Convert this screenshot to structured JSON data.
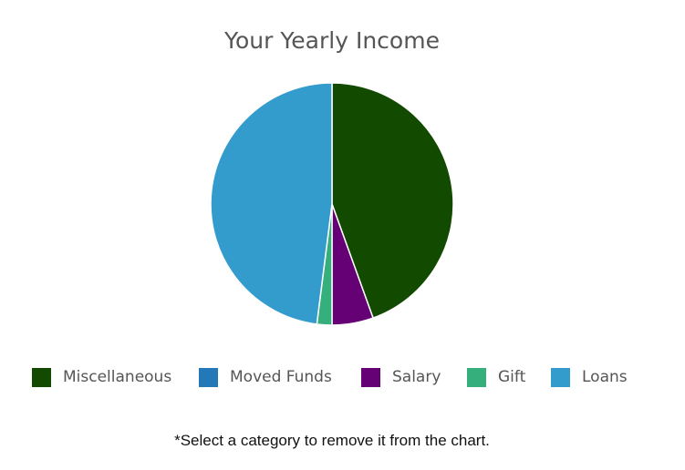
{
  "chart_data": {
    "type": "pie",
    "title": "Your Yearly Income",
    "categories": [
      "Miscellaneous",
      "Moved Funds",
      "Salary",
      "Gift",
      "Loans"
    ],
    "values": [
      44.5,
      0,
      5.5,
      2,
      48
    ],
    "colors": [
      "#124a00",
      "#2379b8",
      "#650075",
      "#35b07c",
      "#349bcd"
    ],
    "legend_position": "bottom"
  },
  "footnote": "*Select a category to remove it from the chart."
}
